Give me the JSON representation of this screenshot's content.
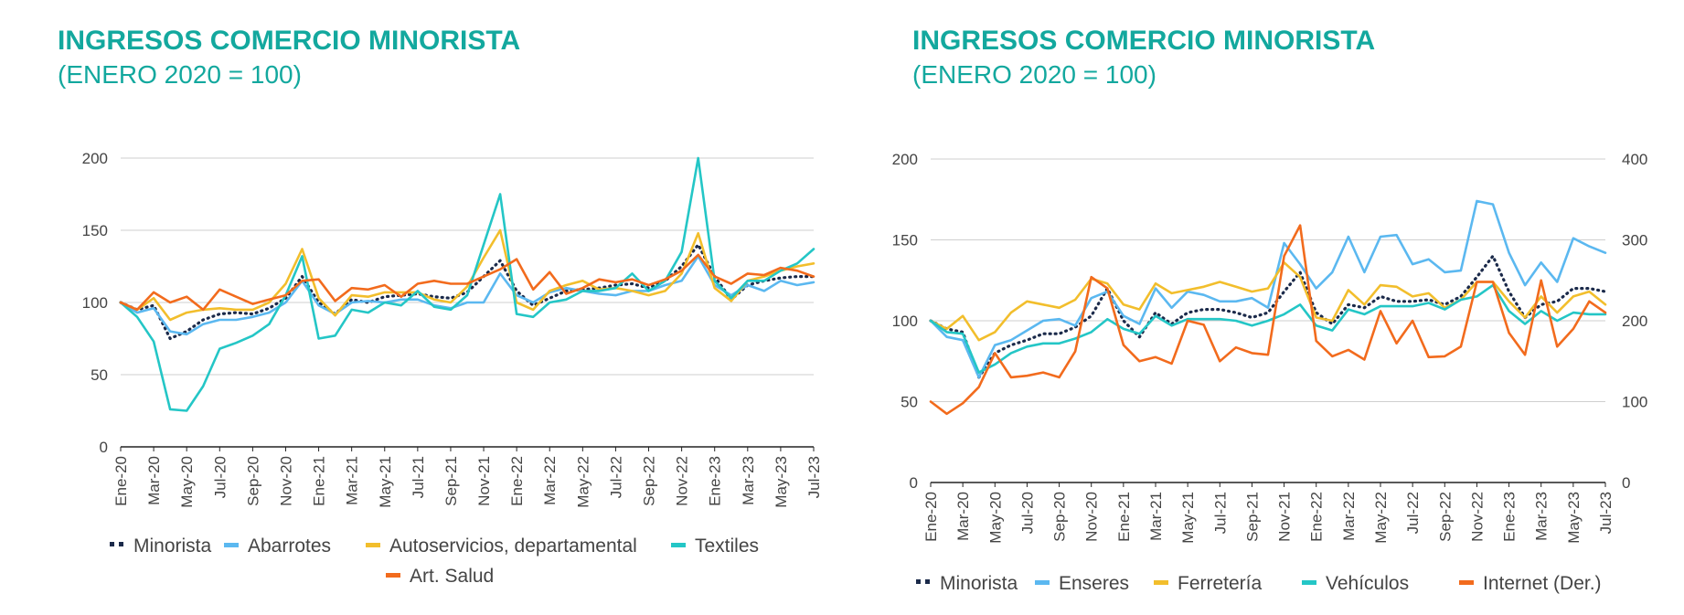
{
  "chart_data": [
    {
      "type": "line",
      "title": "INGRESOS COMERCIO MINORISTA",
      "subtitle": "(ENERO 2020 = 100)",
      "x": [
        "Ene-20",
        "Feb-20",
        "Mar-20",
        "Abr-20",
        "May-20",
        "Jun-20",
        "Jul-20",
        "Ago-20",
        "Sep-20",
        "Oct-20",
        "Nov-20",
        "Dic-20",
        "Ene-21",
        "Feb-21",
        "Mar-21",
        "Abr-21",
        "May-21",
        "Jun-21",
        "Jul-21",
        "Ago-21",
        "Sep-21",
        "Oct-21",
        "Nov-21",
        "Dic-21",
        "Ene-22",
        "Feb-22",
        "Mar-22",
        "Abr-22",
        "May-22",
        "Jun-22",
        "Jul-22",
        "Ago-22",
        "Sep-22",
        "Oct-22",
        "Nov-22",
        "Dic-22",
        "Ene-23",
        "Feb-23",
        "Mar-23",
        "Abr-23",
        "May-23",
        "Jun-23",
        "Jul-23"
      ],
      "xticks": [
        "Ene-20",
        "Mar-20",
        "May-20",
        "Jul-20",
        "Sep-20",
        "Nov-20",
        "Ene-21",
        "Mar-21",
        "May-21",
        "Jul-21",
        "Sep-21",
        "Nov-21",
        "Ene-22",
        "Mar-22",
        "May-22",
        "Jul-22",
        "Sep-22",
        "Nov-22",
        "Ene-23",
        "Mar-23",
        "May-23",
        "Jul-23"
      ],
      "ylim": [
        0,
        200
      ],
      "yticks": [
        0,
        50,
        100,
        150,
        200
      ],
      "grid": true,
      "legend": "bottom",
      "series": [
        {
          "name": "Minorista",
          "color": "#1B2A4A",
          "dash": "dot",
          "values": [
            100,
            95,
            98,
            75,
            80,
            88,
            92,
            93,
            92,
            96,
            103,
            118,
            100,
            92,
            102,
            100,
            104,
            105,
            106,
            104,
            103,
            107,
            118,
            129,
            108,
            98,
            103,
            108,
            109,
            110,
            112,
            113,
            110,
            115,
            125,
            140,
            118,
            102,
            112,
            115,
            117,
            118,
            118
          ]
        },
        {
          "name": "Abarrotes",
          "color": "#5BB8F0",
          "values": [
            100,
            93,
            96,
            80,
            78,
            85,
            88,
            88,
            90,
            93,
            100,
            115,
            98,
            92,
            100,
            101,
            100,
            102,
            102,
            98,
            96,
            100,
            100,
            120,
            105,
            100,
            107,
            110,
            108,
            106,
            105,
            108,
            108,
            112,
            115,
            132,
            112,
            105,
            112,
            108,
            115,
            112,
            114
          ]
        },
        {
          "name": "Autoservicios, departamental",
          "color": "#F2BE2C",
          "values": [
            100,
            95,
            103,
            88,
            93,
            95,
            96,
            95,
            95,
            100,
            113,
            137,
            103,
            91,
            105,
            104,
            107,
            107,
            107,
            102,
            100,
            111,
            131,
            150,
            100,
            95,
            108,
            112,
            115,
            109,
            110,
            108,
            105,
            108,
            120,
            148,
            110,
            101,
            115,
            118,
            122,
            125,
            127
          ]
        },
        {
          "name": "Textiles",
          "color": "#24C6C6",
          "values": [
            100,
            90,
            73,
            26,
            25,
            42,
            68,
            72,
            77,
            85,
            105,
            132,
            75,
            77,
            95,
            93,
            100,
            98,
            108,
            97,
            95,
            105,
            140,
            175,
            92,
            90,
            100,
            102,
            108,
            108,
            110,
            120,
            108,
            115,
            135,
            200,
            115,
            103,
            115,
            115,
            122,
            127,
            137
          ]
        },
        {
          "name": "Art. Salud",
          "color": "#F26B1D",
          "values": [
            100,
            95,
            107,
            100,
            104,
            95,
            109,
            104,
            99,
            102,
            105,
            115,
            116,
            101,
            110,
            109,
            112,
            104,
            113,
            115,
            113,
            113,
            118,
            123,
            130,
            109,
            121,
            106,
            110,
            116,
            114,
            116,
            112,
            116,
            122,
            133,
            118,
            113,
            120,
            119,
            124,
            122,
            118
          ]
        }
      ]
    },
    {
      "type": "line",
      "title": "INGRESOS COMERCIO MINORISTA",
      "subtitle": "(ENERO 2020 = 100)",
      "x": [
        "Ene-20",
        "Feb-20",
        "Mar-20",
        "Abr-20",
        "May-20",
        "Jun-20",
        "Jul-20",
        "Ago-20",
        "Sep-20",
        "Oct-20",
        "Nov-20",
        "Dic-20",
        "Ene-21",
        "Feb-21",
        "Mar-21",
        "Abr-21",
        "May-21",
        "Jun-21",
        "Jul-21",
        "Ago-21",
        "Sep-21",
        "Oct-21",
        "Nov-21",
        "Dic-21",
        "Ene-22",
        "Feb-22",
        "Mar-22",
        "Abr-22",
        "May-22",
        "Jun-22",
        "Jul-22",
        "Ago-22",
        "Sep-22",
        "Oct-22",
        "Nov-22",
        "Dic-22",
        "Ene-23",
        "Feb-23",
        "Mar-23",
        "Abr-23",
        "May-23",
        "Jun-23",
        "Jul-23"
      ],
      "xticks": [
        "Ene-20",
        "Mar-20",
        "May-20",
        "Jul-20",
        "Sep-20",
        "Nov-20",
        "Ene-21",
        "Mar-21",
        "May-21",
        "Jul-21",
        "Sep-21",
        "Nov-21",
        "Ene-22",
        "Mar-22",
        "May-22",
        "Jul-22",
        "Sep-22",
        "Nov-22",
        "Ene-23",
        "Mar-23",
        "May-23",
        "Jul-23"
      ],
      "ylim": [
        0,
        200
      ],
      "yticks": [
        0,
        50,
        100,
        150,
        200
      ],
      "y2lim": [
        0,
        400
      ],
      "y2ticks": [
        0,
        100,
        200,
        300,
        400
      ],
      "grid": true,
      "legend": "bottom",
      "series": [
        {
          "name": "Minorista",
          "color": "#1B2A4A",
          "dash": "dot",
          "axis": "left",
          "values": [
            100,
            95,
            93,
            65,
            80,
            85,
            88,
            92,
            92,
            96,
            103,
            120,
            100,
            90,
            105,
            98,
            105,
            107,
            107,
            105,
            102,
            105,
            118,
            130,
            105,
            98,
            110,
            108,
            115,
            112,
            112,
            113,
            110,
            115,
            127,
            140,
            118,
            102,
            110,
            112,
            120,
            120,
            118
          ]
        },
        {
          "name": "Enseres",
          "color": "#5BB8F0",
          "axis": "left",
          "values": [
            100,
            90,
            88,
            65,
            85,
            88,
            94,
            100,
            101,
            97,
            114,
            118,
            103,
            98,
            120,
            108,
            118,
            116,
            112,
            112,
            114,
            108,
            148,
            135,
            120,
            130,
            152,
            130,
            152,
            153,
            135,
            138,
            130,
            131,
            174,
            172,
            142,
            122,
            136,
            124,
            151,
            146,
            142
          ]
        },
        {
          "name": "Ferretería",
          "color": "#F2BE2C",
          "axis": "left",
          "values": [
            100,
            95,
            103,
            88,
            93,
            105,
            112,
            110,
            108,
            113,
            126,
            123,
            110,
            107,
            123,
            117,
            119,
            121,
            124,
            121,
            118,
            120,
            136,
            127,
            102,
            100,
            119,
            110,
            122,
            121,
            115,
            117,
            108,
            113,
            124,
            124,
            112,
            102,
            115,
            105,
            115,
            118,
            110
          ]
        },
        {
          "name": "Vehículos",
          "color": "#24C6C6",
          "axis": "left",
          "values": [
            100,
            93,
            92,
            68,
            73,
            80,
            84,
            86,
            86,
            89,
            93,
            101,
            95,
            92,
            103,
            97,
            101,
            101,
            101,
            100,
            97,
            100,
            104,
            110,
            97,
            94,
            107,
            104,
            109,
            109,
            109,
            111,
            107,
            113,
            115,
            122,
            106,
            98,
            106,
            100,
            105,
            104,
            104
          ]
        },
        {
          "name": "Internet (Der.)",
          "color": "#F26B1D",
          "axis": "right",
          "values": [
            100,
            85,
            98,
            118,
            160,
            130,
            132,
            136,
            130,
            162,
            254,
            240,
            170,
            150,
            155,
            147,
            200,
            195,
            150,
            167,
            160,
            158,
            280,
            318,
            175,
            156,
            164,
            152,
            212,
            172,
            200,
            155,
            156,
            168,
            248,
            248,
            185,
            158,
            250,
            168,
            190,
            224,
            210
          ]
        }
      ]
    }
  ]
}
